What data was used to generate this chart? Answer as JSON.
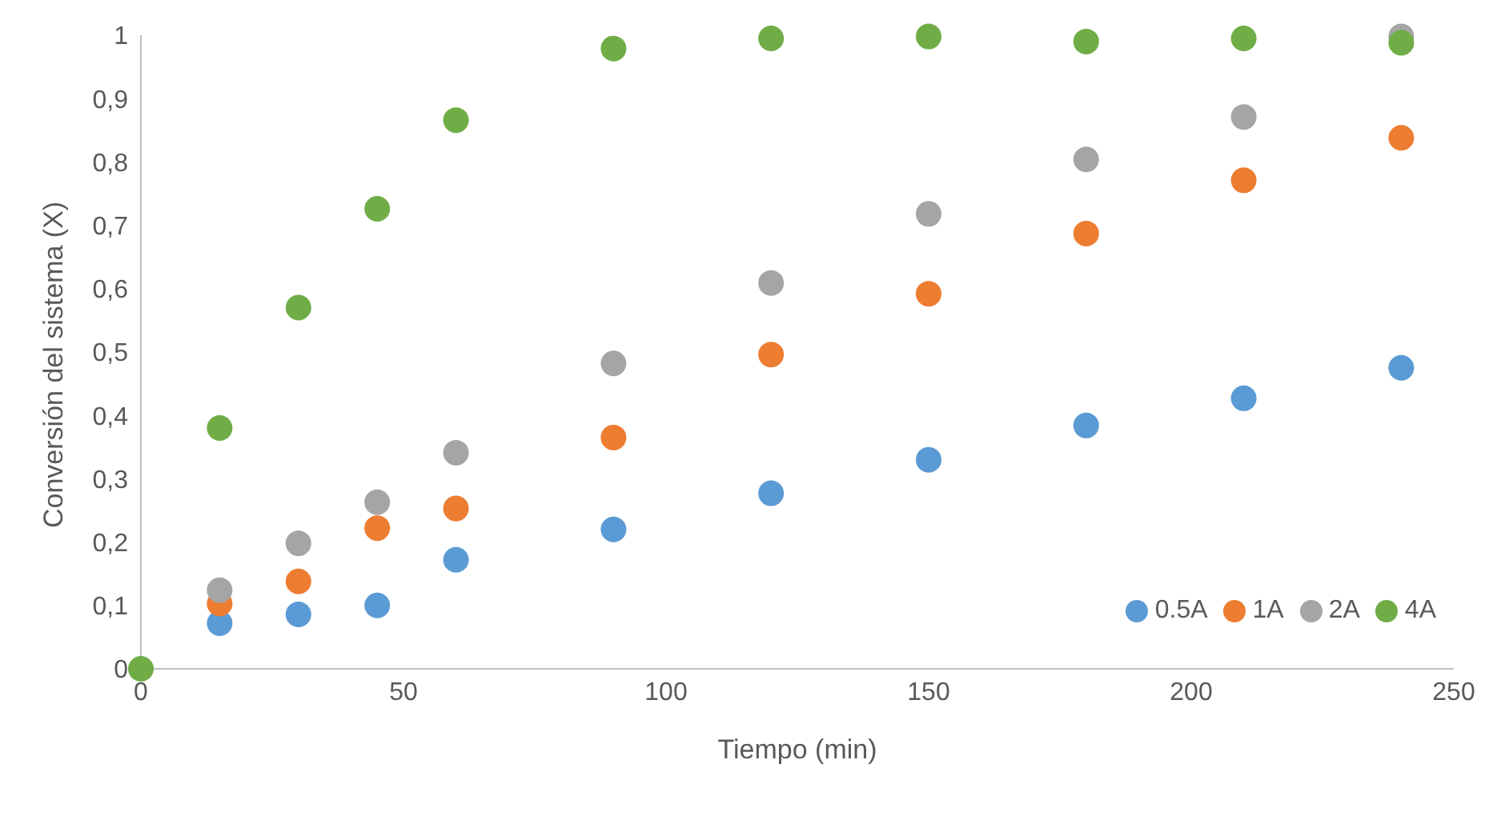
{
  "chart_data": {
    "type": "scatter",
    "xlabel": "Tiempo (min)",
    "ylabel": "Conversión del sistema (X)",
    "xlim": [
      0,
      250
    ],
    "xticks": [
      0,
      50,
      100,
      150,
      200,
      250
    ],
    "ylim": [
      0,
      1
    ],
    "yticks": [
      0,
      {
        "value": 0.1,
        "label": "0,1"
      },
      {
        "value": 0.2,
        "label": "0,2"
      },
      {
        "value": 0.3,
        "label": "0,3"
      },
      {
        "value": 0.4,
        "label": "0,4"
      },
      {
        "value": 0.5,
        "label": "0,5"
      },
      {
        "value": 0.6,
        "label": "0,6"
      },
      {
        "value": 0.7,
        "label": "0,7"
      },
      {
        "value": 0.8,
        "label": "0,8"
      },
      {
        "value": 0.9,
        "label": "0,9"
      },
      1
    ],
    "grid": false,
    "legend": "bottom right",
    "marker": "circle",
    "x": [
      0,
      15,
      30,
      45,
      60,
      90,
      120,
      150,
      180,
      210,
      240
    ],
    "series": [
      {
        "name": "0.5A",
        "color": "#5b9bd5",
        "values": [
          null,
          0.072,
          0.086,
          0.1,
          0.172,
          0.22,
          0.277,
          0.33,
          0.384,
          0.427,
          0.475
        ]
      },
      {
        "name": "1A",
        "color": "#ed7d31",
        "values": [
          null,
          0.103,
          0.138,
          0.222,
          0.253,
          0.365,
          0.496,
          0.592,
          0.687,
          0.771,
          0.838
        ]
      },
      {
        "name": "2A",
        "color": "#a5a5a5",
        "values": [
          null,
          0.124,
          0.198,
          0.263,
          0.341,
          0.482,
          0.609,
          0.718,
          0.804,
          0.871,
          0.998
        ]
      },
      {
        "name": "4A",
        "color": "#70ad47",
        "values": [
          0,
          0.38,
          0.57,
          0.726,
          0.866,
          0.979,
          0.995,
          0.998,
          0.99,
          0.995,
          0.988
        ]
      }
    ]
  }
}
